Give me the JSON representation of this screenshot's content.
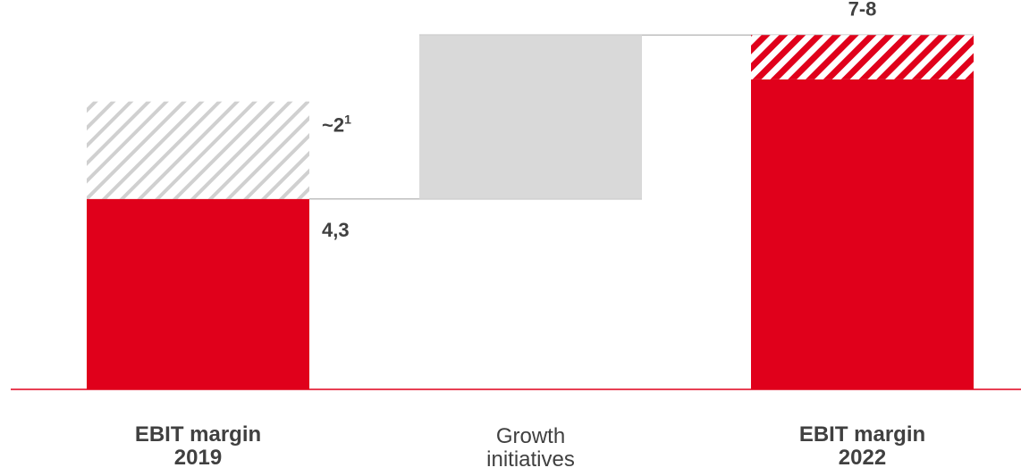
{
  "colors": {
    "primary": "#e0001b",
    "increase": "#d9d9d9",
    "hatch_grey": "#d0d0d0",
    "text": "#404040",
    "baseline": "#e0001b",
    "connector": "#bfbfbf"
  },
  "chart_data": {
    "type": "bar",
    "subtype": "waterfall",
    "ylim": [
      0,
      8.55
    ],
    "categories": [
      {
        "line1": "EBIT margin",
        "line2": "2019",
        "bold": true
      },
      {
        "line1": "Growth",
        "line2": "initiatives",
        "bold": false
      },
      {
        "line1": "EBIT margin",
        "line2": "2022",
        "bold": true
      }
    ],
    "bars": [
      {
        "category": 0,
        "base": 0,
        "value": 4.3,
        "style": "solid-red",
        "label": "4,3"
      },
      {
        "category": 0,
        "base": 4.3,
        "value": 2.2,
        "style": "hatched-grey",
        "label": "~2",
        "label_superscript": "1"
      },
      {
        "category": 1,
        "base": 4.3,
        "value": 3.7,
        "style": "solid-grey",
        "label": ""
      },
      {
        "category": 2,
        "base": 0,
        "value": 7.0,
        "style": "solid-red",
        "label": ""
      },
      {
        "category": 2,
        "base": 7.0,
        "value": 1.0,
        "style": "hatched-red",
        "label": "7-8"
      }
    ]
  }
}
